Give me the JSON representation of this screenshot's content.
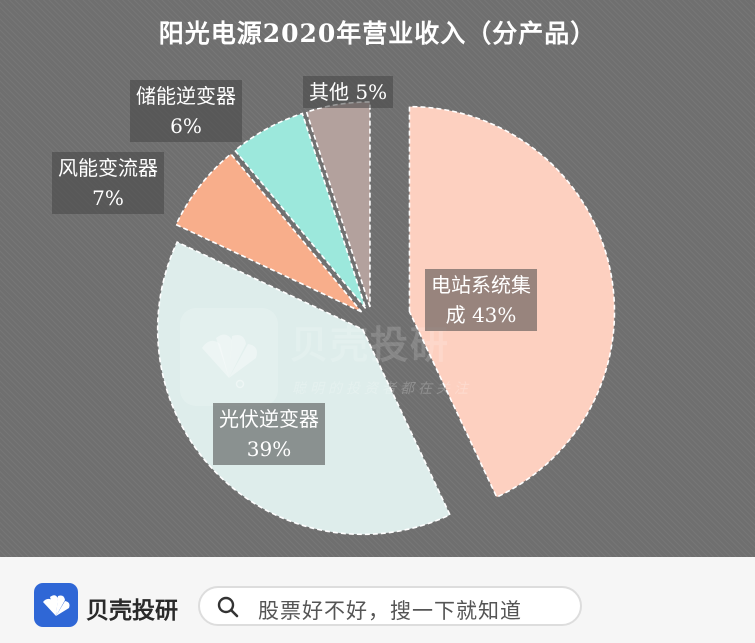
{
  "chart_data": {
    "type": "pie",
    "title": "阳光电源2020年营业收入（分产品）",
    "slices": [
      {
        "name": "电站系统集成",
        "label_lines": [
          "电站系统集",
          "成 43%"
        ],
        "value": 43,
        "color": "#fdd0c0",
        "exploded": true
      },
      {
        "name": "光伏逆变器",
        "label_lines": [
          "光伏逆变器",
          "39%"
        ],
        "value": 39,
        "color": "#deedeb",
        "exploded": false
      },
      {
        "name": "风能变流器",
        "label_lines": [
          "风能变流器",
          "7%"
        ],
        "value": 7,
        "color": "#f8ae8b",
        "exploded": false
      },
      {
        "name": "储能逆变器",
        "label_lines": [
          "储能逆变器",
          "6%"
        ],
        "value": 6,
        "color": "#9ce8dc",
        "exploded": false
      },
      {
        "name": "其他",
        "label_lines": [
          "其他  5%"
        ],
        "value": 5,
        "color": "#b3a19d",
        "exploded": false
      }
    ],
    "legend": "none",
    "grid": false
  },
  "watermark": {
    "name": "贝壳投研",
    "slogan": "聪明的投资者都在关注"
  },
  "footer": {
    "brand": "贝壳投研",
    "search_placeholder": "股票好不好，搜一下就知道",
    "logo_icon": "shell-logo-icon",
    "search_icon": "search-icon"
  }
}
